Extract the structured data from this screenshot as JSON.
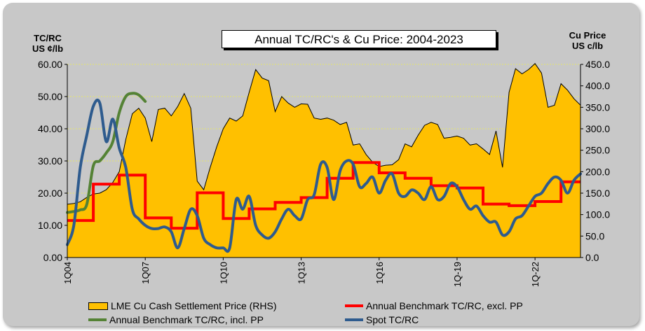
{
  "chart_data": {
    "type": "line",
    "title": "Annual TC/RC's & Cu Price: 2004-2023",
    "left_axis": {
      "title_line1": "TC/RC",
      "title_line2": "US ¢/lb",
      "ylim": [
        0,
        60
      ],
      "ticks": [
        "0.00",
        "10.00",
        "20.00",
        "30.00",
        "40.00",
        "50.00",
        "60.00"
      ]
    },
    "right_axis": {
      "title_line1": "Cu Price",
      "title_line2": "US c/lb",
      "ylim": [
        0,
        450
      ],
      "ticks": [
        "0.0",
        "50.0",
        "100.0",
        "150.0",
        "200.0",
        "250.0",
        "300.0",
        "350.0",
        "400.0",
        "450.0"
      ]
    },
    "x_range": [
      2004.0,
      2023.75
    ],
    "x_ticks": [
      {
        "label": "1Q04",
        "x": 2004.0
      },
      {
        "label": "1Q07",
        "x": 2007.0
      },
      {
        "label": "1Q10",
        "x": 2010.0
      },
      {
        "label": "1Q13",
        "x": 2013.0
      },
      {
        "label": "1Q16",
        "x": 2016.0
      },
      {
        "label": "1Q-19",
        "x": 2019.0
      },
      {
        "label": "1Q-22",
        "x": 2022.0
      }
    ],
    "series": [
      {
        "name": "LME Cu Cash Settlement Price (RHS)",
        "type": "area",
        "axis": "right",
        "color": "#ffc000",
        "x": [
          2004.0,
          2004.25,
          2004.5,
          2004.75,
          2005.0,
          2005.25,
          2005.5,
          2005.75,
          2006.0,
          2006.25,
          2006.5,
          2006.75,
          2007.0,
          2007.25,
          2007.5,
          2007.75,
          2008.0,
          2008.25,
          2008.5,
          2008.75,
          2009.0,
          2009.25,
          2009.5,
          2009.75,
          2010.0,
          2010.25,
          2010.5,
          2010.75,
          2011.0,
          2011.25,
          2011.5,
          2011.75,
          2012.0,
          2012.25,
          2012.5,
          2012.75,
          2013.0,
          2013.25,
          2013.5,
          2013.75,
          2014.0,
          2014.25,
          2014.5,
          2014.75,
          2015.0,
          2015.25,
          2015.5,
          2015.75,
          2016.0,
          2016.25,
          2016.5,
          2016.75,
          2017.0,
          2017.25,
          2017.5,
          2017.75,
          2018.0,
          2018.25,
          2018.5,
          2018.75,
          2019.0,
          2019.25,
          2019.5,
          2019.75,
          2020.0,
          2020.25,
          2020.5,
          2020.75,
          2021.0,
          2021.25,
          2021.5,
          2021.75,
          2022.0,
          2022.25,
          2022.5,
          2022.75,
          2023.0,
          2023.25,
          2023.5,
          2023.75
        ],
        "values": [
          124,
          126,
          130,
          140,
          148,
          150,
          158,
          175,
          200,
          275,
          335,
          348,
          325,
          270,
          345,
          348,
          330,
          352,
          382,
          348,
          178,
          158,
          210,
          258,
          300,
          325,
          318,
          330,
          385,
          438,
          418,
          412,
          340,
          375,
          360,
          350,
          358,
          357,
          325,
          322,
          325,
          320,
          310,
          315,
          262,
          265,
          240,
          222,
          212,
          215,
          216,
          228,
          265,
          258,
          285,
          308,
          315,
          310,
          278,
          280,
          283,
          278,
          262,
          265,
          253,
          240,
          295,
          210,
          385,
          440,
          428,
          438,
          452,
          430,
          350,
          355,
          405,
          390,
          370,
          355
        ]
      },
      {
        "name": "Annual Benchmark TC/RC, excl. PP",
        "type": "step",
        "axis": "left",
        "color": "#ff0000",
        "x": [
          2004.0,
          2005.0,
          2006.0,
          2007.0,
          2008.0,
          2009.0,
          2010.0,
          2011.0,
          2012.0,
          2013.0,
          2014.0,
          2015.0,
          2016.0,
          2017.0,
          2018.0,
          2019.0,
          2020.0,
          2021.0,
          2022.0,
          2023.0,
          2023.75
        ],
        "values": [
          11.5,
          22.8,
          25.6,
          12.3,
          9.1,
          20.1,
          12.1,
          15.1,
          17.1,
          18.6,
          24.6,
          29.5,
          26.3,
          24.6,
          22.3,
          21.6,
          16.6,
          16.1,
          17.4,
          23.5,
          23.5
        ]
      },
      {
        "name": "Annual Benchmark TC/RC, incl. PP",
        "type": "line",
        "axis": "left",
        "color": "#548235",
        "x": [
          2004.0,
          2004.25,
          2004.5,
          2004.75,
          2005.0,
          2005.25,
          2005.5,
          2005.75,
          2006.0,
          2006.25,
          2006.5,
          2006.75,
          2007.0
        ],
        "values": [
          14,
          14.3,
          14.8,
          16.5,
          28.5,
          30,
          32.5,
          36,
          45,
          50,
          51,
          50.5,
          48.5
        ]
      },
      {
        "name": "Spot TC/RC",
        "type": "line",
        "axis": "left",
        "color": "#2e5b8e",
        "x": [
          2004.0,
          2004.25,
          2004.5,
          2004.75,
          2005.0,
          2005.25,
          2005.5,
          2005.75,
          2006.0,
          2006.25,
          2006.5,
          2006.75,
          2007.0,
          2007.25,
          2007.5,
          2007.75,
          2008.0,
          2008.25,
          2008.5,
          2008.75,
          2009.0,
          2009.25,
          2009.5,
          2009.75,
          2010.0,
          2010.25,
          2010.5,
          2010.75,
          2011.0,
          2011.25,
          2011.5,
          2011.75,
          2012.0,
          2012.25,
          2012.5,
          2012.75,
          2013.0,
          2013.25,
          2013.5,
          2013.75,
          2014.0,
          2014.25,
          2014.5,
          2014.75,
          2015.0,
          2015.25,
          2015.5,
          2015.75,
          2016.0,
          2016.25,
          2016.5,
          2016.75,
          2017.0,
          2017.25,
          2017.5,
          2017.75,
          2018.0,
          2018.25,
          2018.5,
          2018.75,
          2019.0,
          2019.25,
          2019.5,
          2019.75,
          2020.0,
          2020.25,
          2020.5,
          2020.75,
          2021.0,
          2021.25,
          2021.5,
          2021.75,
          2022.0,
          2022.25,
          2022.5,
          2022.75,
          2023.0,
          2023.25,
          2023.5,
          2023.75
        ],
        "values": [
          4,
          10,
          28,
          38,
          47,
          48,
          36,
          43,
          34,
          28,
          15,
          12,
          10,
          9,
          9,
          9.5,
          8,
          3,
          9,
          15,
          13,
          6,
          4,
          3,
          3,
          3,
          18,
          15,
          19,
          10,
          7,
          6,
          8,
          12,
          15,
          13,
          12,
          18,
          19.5,
          29,
          28,
          18,
          27,
          30,
          29,
          22,
          23,
          25,
          20,
          24,
          26,
          20,
          19,
          21,
          20,
          18,
          22,
          18,
          19,
          23,
          22,
          18,
          15,
          16,
          13,
          11,
          11,
          7,
          8,
          12,
          13,
          16,
          19,
          20,
          23,
          25,
          24,
          20,
          24,
          26
        ]
      }
    ],
    "legend": [
      {
        "label": "LME Cu Cash Settlement Price (RHS)",
        "kind": "fill",
        "color": "#ffc000"
      },
      {
        "label": "Annual Benchmark TC/RC, excl. PP",
        "kind": "line",
        "color": "#ff0000"
      },
      {
        "label": "Annual Benchmark TC/RC, incl. PP",
        "kind": "line",
        "color": "#548235"
      },
      {
        "label": "Spot TC/RC",
        "kind": "line",
        "color": "#2e5b8e"
      }
    ]
  }
}
